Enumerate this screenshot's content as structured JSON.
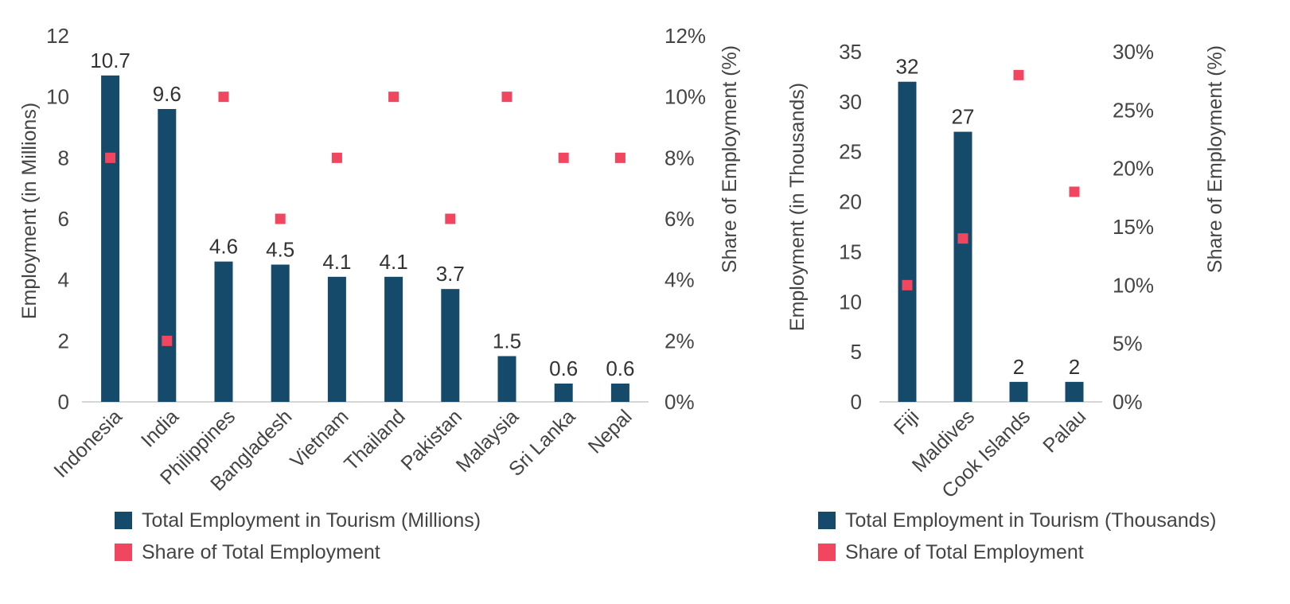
{
  "colors": {
    "bar": "#154a6b",
    "marker": "#f0465f",
    "axis": "#c8c8c8",
    "text": "#444444"
  },
  "chart_data": [
    {
      "type": "bar",
      "categories": [
        "Indonesia",
        "India",
        "Philippines",
        "Bangladesh",
        "Vietnam",
        "Thailand",
        "Pakistan",
        "Malaysia",
        "Sri Lanka",
        "Nepal"
      ],
      "series": [
        {
          "name": "Total Employment in Tourism (Millions)",
          "type": "bar",
          "axis": "left",
          "values": [
            10.7,
            9.6,
            4.6,
            4.5,
            4.1,
            4.1,
            3.7,
            1.5,
            0.6,
            0.6
          ]
        },
        {
          "name": "Share of Total Employment",
          "type": "scatter",
          "axis": "right",
          "values": [
            8,
            2,
            10,
            6,
            8,
            10,
            6,
            10,
            8,
            8
          ]
        }
      ],
      "data_labels": [
        "10.7",
        "9.6",
        "4.6",
        "4.5",
        "4.1",
        "4.1",
        "3.7",
        "1.5",
        "0.6",
        "0.6"
      ],
      "ylabel": "Employment (in Millions)",
      "ylabel_right": "Share of Employment (%)",
      "ylim": [
        0,
        12
      ],
      "ylim_right": [
        0,
        12
      ],
      "yticks": [
        "0",
        "2",
        "4",
        "6",
        "8",
        "10",
        "12"
      ],
      "yticks_right": [
        "0%",
        "2%",
        "4%",
        "6%",
        "8%",
        "10%",
        "12%"
      ],
      "grid": false,
      "legend_position": "bottom"
    },
    {
      "type": "bar",
      "categories": [
        "Fiji",
        "Maldives",
        "Cook Islands",
        "Palau"
      ],
      "series": [
        {
          "name": "Total Employment in Tourism (Thousands)",
          "type": "bar",
          "axis": "left",
          "values": [
            32,
            27,
            2,
            2
          ]
        },
        {
          "name": "Share of Total Employment",
          "type": "scatter",
          "axis": "right",
          "values": [
            10,
            14,
            28,
            18
          ]
        }
      ],
      "data_labels": [
        "32",
        "27",
        "2",
        "2"
      ],
      "ylabel": "Employment (in Thousands)",
      "ylabel_right": "Share of Employment (%)",
      "ylim": [
        0,
        35
      ],
      "ylim_right": [
        0,
        30
      ],
      "yticks": [
        "0",
        "5",
        "10",
        "15",
        "20",
        "25",
        "30",
        "35"
      ],
      "yticks_right": [
        "0%",
        "5%",
        "10%",
        "15%",
        "20%",
        "25%",
        "30%"
      ],
      "grid": false,
      "legend_position": "bottom"
    }
  ]
}
